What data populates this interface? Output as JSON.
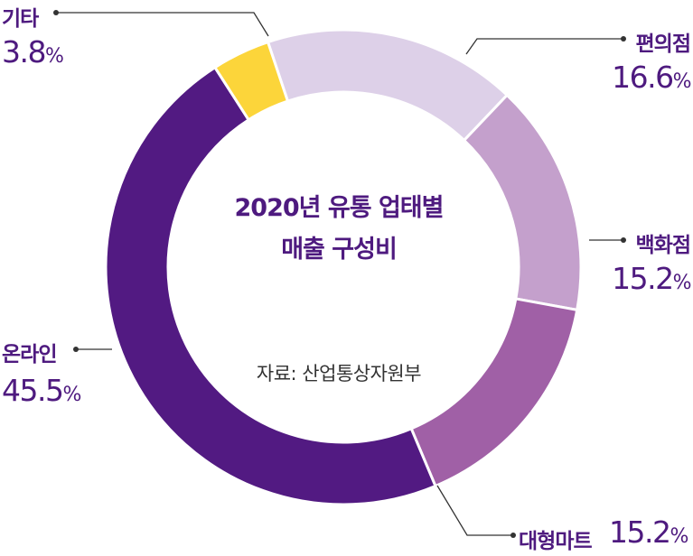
{
  "chart_data": {
    "type": "pie",
    "title_lines": [
      "2020년 유통 업태별",
      "매출 구성비"
    ],
    "source": "자료: 산업통상자원부",
    "categories": [
      "편의점",
      "백화점",
      "대형마트",
      "온라인",
      "기타"
    ],
    "values": [
      16.6,
      15.2,
      15.2,
      45.5,
      3.8
    ],
    "value_labels": [
      "16.6",
      "15.2",
      "15.2",
      "45.5",
      "3.8"
    ],
    "unit": "%",
    "colors": [
      "#ddd0e8",
      "#c4a0cc",
      "#a060a6",
      "#521a82",
      "#fcd53a"
    ],
    "donut": true,
    "start_angle_deg": -18.5
  }
}
